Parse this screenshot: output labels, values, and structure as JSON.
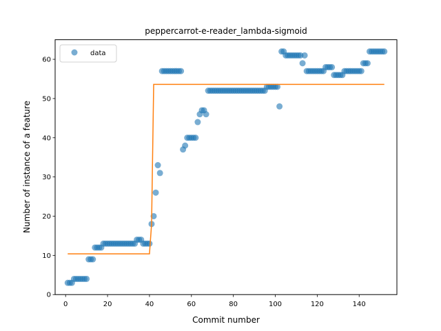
{
  "chart_data": {
    "type": "scatter",
    "title": "peppercarrot-e-reader_lambda-sigmoid",
    "xlabel": "Commit number",
    "ylabel": "Number of instance of a feature",
    "xlim": [
      -5,
      158
    ],
    "ylim": [
      0,
      65
    ],
    "xticks": [
      0,
      20,
      40,
      60,
      80,
      100,
      120,
      140
    ],
    "yticks": [
      0,
      10,
      20,
      30,
      40,
      50,
      60
    ],
    "legend": {
      "placement": "top-left",
      "entries": [
        "data"
      ]
    },
    "colors": {
      "data": "#1f77b4",
      "fit": "#ff7f0e"
    },
    "series": [
      {
        "name": "data",
        "kind": "scatter",
        "points": [
          [
            1,
            3
          ],
          [
            2,
            3
          ],
          [
            3,
            3
          ],
          [
            4,
            4
          ],
          [
            5,
            4
          ],
          [
            6,
            4
          ],
          [
            7,
            4
          ],
          [
            8,
            4
          ],
          [
            9,
            4
          ],
          [
            10,
            4
          ],
          [
            11,
            9
          ],
          [
            12,
            9
          ],
          [
            13,
            9
          ],
          [
            14,
            12
          ],
          [
            15,
            12
          ],
          [
            16,
            12
          ],
          [
            17,
            12
          ],
          [
            18,
            13
          ],
          [
            19,
            13
          ],
          [
            20,
            13
          ],
          [
            21,
            13
          ],
          [
            22,
            13
          ],
          [
            23,
            13
          ],
          [
            24,
            13
          ],
          [
            25,
            13
          ],
          [
            26,
            13
          ],
          [
            27,
            13
          ],
          [
            28,
            13
          ],
          [
            29,
            13
          ],
          [
            30,
            13
          ],
          [
            31,
            13
          ],
          [
            32,
            13
          ],
          [
            33,
            13
          ],
          [
            34,
            14
          ],
          [
            35,
            14
          ],
          [
            36,
            14
          ],
          [
            37,
            13
          ],
          [
            38,
            13
          ],
          [
            39,
            13
          ],
          [
            40,
            13
          ],
          [
            41,
            18
          ],
          [
            42,
            20
          ],
          [
            43,
            26
          ],
          [
            44,
            33
          ],
          [
            45,
            31
          ],
          [
            46,
            57
          ],
          [
            47,
            57
          ],
          [
            48,
            57
          ],
          [
            49,
            57
          ],
          [
            50,
            57
          ],
          [
            51,
            57
          ],
          [
            52,
            57
          ],
          [
            53,
            57
          ],
          [
            54,
            57
          ],
          [
            55,
            57
          ],
          [
            56,
            37
          ],
          [
            57,
            38
          ],
          [
            58,
            40
          ],
          [
            59,
            40
          ],
          [
            60,
            40
          ],
          [
            61,
            40
          ],
          [
            62,
            40
          ],
          [
            63,
            44
          ],
          [
            64,
            46
          ],
          [
            65,
            47
          ],
          [
            66,
            47
          ],
          [
            67,
            46
          ],
          [
            68,
            52
          ],
          [
            69,
            52
          ],
          [
            70,
            52
          ],
          [
            71,
            52
          ],
          [
            72,
            52
          ],
          [
            73,
            52
          ],
          [
            74,
            52
          ],
          [
            75,
            52
          ],
          [
            76,
            52
          ],
          [
            77,
            52
          ],
          [
            78,
            52
          ],
          [
            79,
            52
          ],
          [
            80,
            52
          ],
          [
            81,
            52
          ],
          [
            82,
            52
          ],
          [
            83,
            52
          ],
          [
            84,
            52
          ],
          [
            85,
            52
          ],
          [
            86,
            52
          ],
          [
            87,
            52
          ],
          [
            88,
            52
          ],
          [
            89,
            52
          ],
          [
            90,
            52
          ],
          [
            91,
            52
          ],
          [
            92,
            52
          ],
          [
            93,
            52
          ],
          [
            94,
            52
          ],
          [
            95,
            52
          ],
          [
            96,
            53
          ],
          [
            97,
            53
          ],
          [
            98,
            53
          ],
          [
            99,
            53
          ],
          [
            100,
            53
          ],
          [
            101,
            53
          ],
          [
            102,
            48
          ],
          [
            103,
            62
          ],
          [
            104,
            62
          ],
          [
            105,
            61
          ],
          [
            106,
            61
          ],
          [
            107,
            61
          ],
          [
            108,
            61
          ],
          [
            109,
            61
          ],
          [
            110,
            61
          ],
          [
            111,
            61
          ],
          [
            112,
            61
          ],
          [
            113,
            59
          ],
          [
            114,
            61
          ],
          [
            115,
            57
          ],
          [
            116,
            57
          ],
          [
            117,
            57
          ],
          [
            118,
            57
          ],
          [
            119,
            57
          ],
          [
            120,
            57
          ],
          [
            121,
            57
          ],
          [
            122,
            57
          ],
          [
            123,
            57
          ],
          [
            124,
            58
          ],
          [
            125,
            58
          ],
          [
            126,
            58
          ],
          [
            127,
            58
          ],
          [
            128,
            56
          ],
          [
            129,
            56
          ],
          [
            130,
            56
          ],
          [
            131,
            56
          ],
          [
            132,
            56
          ],
          [
            133,
            57
          ],
          [
            134,
            57
          ],
          [
            135,
            57
          ],
          [
            136,
            57
          ],
          [
            137,
            57
          ],
          [
            138,
            57
          ],
          [
            139,
            57
          ],
          [
            140,
            57
          ],
          [
            141,
            57
          ],
          [
            142,
            59
          ],
          [
            143,
            59
          ],
          [
            144,
            59
          ],
          [
            145,
            62
          ],
          [
            146,
            62
          ],
          [
            147,
            62
          ],
          [
            148,
            62
          ],
          [
            149,
            62
          ],
          [
            150,
            62
          ],
          [
            151,
            62
          ],
          [
            152,
            62
          ]
        ]
      },
      {
        "kind": "line",
        "points": [
          [
            1,
            10.4
          ],
          [
            40,
            10.4
          ],
          [
            41,
            18
          ],
          [
            42,
            53.6
          ],
          [
            152,
            53.6
          ]
        ]
      }
    ]
  }
}
